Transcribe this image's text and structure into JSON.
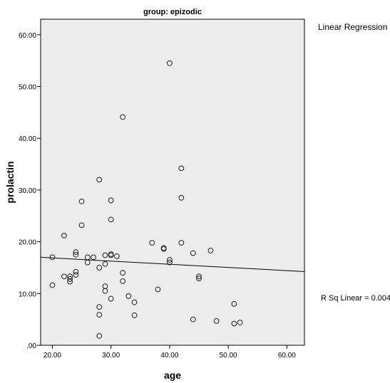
{
  "chart_data": {
    "type": "scatter",
    "title": "group: epizodic",
    "xlabel": "age",
    "ylabel": "prolactin",
    "xlim": [
      18,
      63
    ],
    "ylim": [
      0,
      63
    ],
    "xticks": [
      "20.00",
      "30.00",
      "40.00",
      "50.00",
      "60.00"
    ],
    "yticks": [
      ".00",
      "10.00",
      "20.00",
      "30.00",
      "40.00",
      "50.00",
      "60.00"
    ],
    "legend": "Linear Regression",
    "r_squared_label": "R Sq Linear = 0.004",
    "plot_background": "#ececec",
    "grid": false,
    "regression_line": {
      "intercept": 18.1,
      "slope": -0.0612
    },
    "points": [
      {
        "x": 20,
        "y": 11.6
      },
      {
        "x": 20,
        "y": 17.0
      },
      {
        "x": 22,
        "y": 21.2
      },
      {
        "x": 22,
        "y": 13.3
      },
      {
        "x": 23,
        "y": 13.3
      },
      {
        "x": 23,
        "y": 12.8
      },
      {
        "x": 23,
        "y": 12.3
      },
      {
        "x": 24,
        "y": 18.0
      },
      {
        "x": 24,
        "y": 17.5
      },
      {
        "x": 24,
        "y": 14.2
      },
      {
        "x": 24,
        "y": 13.6
      },
      {
        "x": 25,
        "y": 27.8
      },
      {
        "x": 25,
        "y": 23.2
      },
      {
        "x": 26,
        "y": 17.0
      },
      {
        "x": 26,
        "y": 16.0
      },
      {
        "x": 27,
        "y": 17.0
      },
      {
        "x": 28,
        "y": 32.0
      },
      {
        "x": 28,
        "y": 15.0
      },
      {
        "x": 28,
        "y": 7.4
      },
      {
        "x": 28,
        "y": 5.9
      },
      {
        "x": 28,
        "y": 1.8
      },
      {
        "x": 29,
        "y": 17.4
      },
      {
        "x": 29,
        "y": 15.7
      },
      {
        "x": 29,
        "y": 11.4
      },
      {
        "x": 29,
        "y": 10.5
      },
      {
        "x": 30,
        "y": 28.0
      },
      {
        "x": 30,
        "y": 24.3
      },
      {
        "x": 30,
        "y": 17.6
      },
      {
        "x": 30,
        "y": 17.4
      },
      {
        "x": 30,
        "y": 9.0
      },
      {
        "x": 31,
        "y": 17.2
      },
      {
        "x": 32,
        "y": 44.1
      },
      {
        "x": 32,
        "y": 14.0
      },
      {
        "x": 32,
        "y": 12.4
      },
      {
        "x": 33,
        "y": 9.5
      },
      {
        "x": 34,
        "y": 8.3
      },
      {
        "x": 34,
        "y": 5.8
      },
      {
        "x": 37,
        "y": 19.8
      },
      {
        "x": 38,
        "y": 10.8
      },
      {
        "x": 39,
        "y": 18.8
      },
      {
        "x": 39,
        "y": 18.6
      },
      {
        "x": 40,
        "y": 54.5
      },
      {
        "x": 40,
        "y": 16.5
      },
      {
        "x": 40,
        "y": 16.0
      },
      {
        "x": 42,
        "y": 34.2
      },
      {
        "x": 42,
        "y": 28.5
      },
      {
        "x": 42,
        "y": 19.8
      },
      {
        "x": 44,
        "y": 17.8
      },
      {
        "x": 44,
        "y": 5.0
      },
      {
        "x": 45,
        "y": 13.3
      },
      {
        "x": 45,
        "y": 12.9
      },
      {
        "x": 47,
        "y": 18.3
      },
      {
        "x": 48,
        "y": 4.7
      },
      {
        "x": 51,
        "y": 8.0
      },
      {
        "x": 51,
        "y": 4.2
      },
      {
        "x": 52,
        "y": 4.4
      }
    ]
  }
}
